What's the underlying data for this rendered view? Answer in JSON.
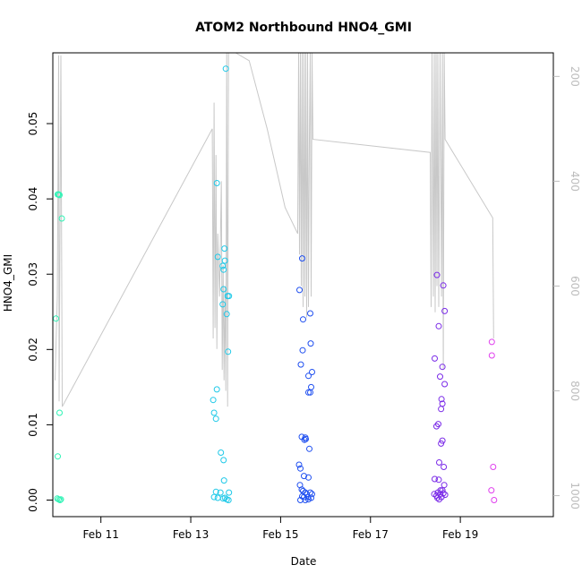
{
  "chart_data": {
    "type": "scatter",
    "title": "ATOM2 Northbound HNO4_GMI",
    "xlabel": "Date",
    "ylabel": "HNO4_GMI",
    "x_ticks": [
      {
        "label": "Feb 11",
        "day": 11
      },
      {
        "label": "Feb 13",
        "day": 13
      },
      {
        "label": "Feb 15",
        "day": 15
      },
      {
        "label": "Feb 17",
        "day": 17
      },
      {
        "label": "Feb 19",
        "day": 19
      }
    ],
    "y_ticks": [
      "0.00",
      "0.01",
      "0.02",
      "0.03",
      "0.04",
      "0.05"
    ],
    "xlim": [
      9.93,
      21.07
    ],
    "ylim": [
      -0.0022,
      0.0594
    ],
    "right_axis": {
      "ticks": [
        "200",
        "400",
        "600",
        "800",
        "1000"
      ],
      "lim": [
        1040,
        155
      ],
      "reversed": true,
      "color": "#bdbdbd"
    },
    "points": [
      {
        "x": 10.0,
        "y": 0.0241,
        "color": "#2EF3B5"
      },
      {
        "x": 10.04,
        "y": 0.0406,
        "color": "#2EF3B5"
      },
      {
        "x": 10.06,
        "y": 0.0406,
        "color": "#2EF3B5"
      },
      {
        "x": 10.08,
        "y": 0.0405,
        "color": "#2EF3B5"
      },
      {
        "x": 10.13,
        "y": 0.0374,
        "color": "#2EF3B5"
      },
      {
        "x": 10.08,
        "y": 0.0116,
        "color": "#2EF3B5"
      },
      {
        "x": 10.04,
        "y": 0.0058,
        "color": "#2EF3B5"
      },
      {
        "x": 10.03,
        "y": 0.0002,
        "color": "#2EF3B5"
      },
      {
        "x": 10.06,
        "y": 0.0001,
        "color": "#2EF3B5"
      },
      {
        "x": 10.09,
        "y": 0.0,
        "color": "#2EF3B5"
      },
      {
        "x": 10.11,
        "y": 0.0001,
        "color": "#2EF3B5"
      },
      {
        "x": 13.78,
        "y": 0.0573,
        "color": "#1FC9E8"
      },
      {
        "x": 13.58,
        "y": 0.0421,
        "color": "#1FC9E8"
      },
      {
        "x": 13.75,
        "y": 0.0334,
        "color": "#1FC9E8"
      },
      {
        "x": 13.6,
        "y": 0.0323,
        "color": "#1FC9E8"
      },
      {
        "x": 13.76,
        "y": 0.0318,
        "color": "#1FC9E8"
      },
      {
        "x": 13.71,
        "y": 0.0311,
        "color": "#1FC9E8"
      },
      {
        "x": 13.73,
        "y": 0.0306,
        "color": "#1FC9E8"
      },
      {
        "x": 13.73,
        "y": 0.028,
        "color": "#1FC9E8"
      },
      {
        "x": 13.82,
        "y": 0.0271,
        "color": "#1FC9E8"
      },
      {
        "x": 13.85,
        "y": 0.0271,
        "color": "#1FC9E8"
      },
      {
        "x": 13.71,
        "y": 0.026,
        "color": "#1FC9E8"
      },
      {
        "x": 13.8,
        "y": 0.0247,
        "color": "#1FC9E8"
      },
      {
        "x": 13.83,
        "y": 0.0197,
        "color": "#1FC9E8"
      },
      {
        "x": 13.58,
        "y": 0.0147,
        "color": "#1FC9E8"
      },
      {
        "x": 13.5,
        "y": 0.0133,
        "color": "#1FC9E8"
      },
      {
        "x": 13.52,
        "y": 0.0116,
        "color": "#1FC9E8"
      },
      {
        "x": 13.56,
        "y": 0.0108,
        "color": "#1FC9E8"
      },
      {
        "x": 13.67,
        "y": 0.0063,
        "color": "#1FC9E8"
      },
      {
        "x": 13.73,
        "y": 0.0053,
        "color": "#1FC9E8"
      },
      {
        "x": 13.74,
        "y": 0.0026,
        "color": "#1FC9E8"
      },
      {
        "x": 13.56,
        "y": 0.0011,
        "color": "#1FC9E8"
      },
      {
        "x": 13.66,
        "y": 0.001,
        "color": "#1FC9E8"
      },
      {
        "x": 13.85,
        "y": 0.001,
        "color": "#1FC9E8"
      },
      {
        "x": 13.52,
        "y": 0.0004,
        "color": "#1FC9E8"
      },
      {
        "x": 13.6,
        "y": 0.0003,
        "color": "#1FC9E8"
      },
      {
        "x": 13.76,
        "y": 0.0003,
        "color": "#1FC9E8"
      },
      {
        "x": 13.8,
        "y": 0.0001,
        "color": "#1FC9E8"
      },
      {
        "x": 13.84,
        "y": 0.0,
        "color": "#1FC9E8"
      },
      {
        "x": 13.72,
        "y": 0.0002,
        "color": "#1FC9E8"
      },
      {
        "x": 15.48,
        "y": 0.0321,
        "color": "#1F4FF0"
      },
      {
        "x": 15.42,
        "y": 0.0279,
        "color": "#1F4FF0"
      },
      {
        "x": 15.66,
        "y": 0.0248,
        "color": "#1F4FF0"
      },
      {
        "x": 15.5,
        "y": 0.024,
        "color": "#1F4FF0"
      },
      {
        "x": 15.67,
        "y": 0.0208,
        "color": "#1F4FF0"
      },
      {
        "x": 15.49,
        "y": 0.0199,
        "color": "#1F4FF0"
      },
      {
        "x": 15.45,
        "y": 0.018,
        "color": "#1F4FF0"
      },
      {
        "x": 15.7,
        "y": 0.017,
        "color": "#1F4FF0"
      },
      {
        "x": 15.62,
        "y": 0.0165,
        "color": "#1F4FF0"
      },
      {
        "x": 15.68,
        "y": 0.015,
        "color": "#1F4FF0"
      },
      {
        "x": 15.62,
        "y": 0.0143,
        "color": "#1F4FF0"
      },
      {
        "x": 15.66,
        "y": 0.0143,
        "color": "#1F4FF0"
      },
      {
        "x": 15.47,
        "y": 0.0084,
        "color": "#1F4FF0"
      },
      {
        "x": 15.55,
        "y": 0.0083,
        "color": "#1F4FF0"
      },
      {
        "x": 15.56,
        "y": 0.0081,
        "color": "#1F4FF0"
      },
      {
        "x": 15.53,
        "y": 0.008,
        "color": "#1F4FF0"
      },
      {
        "x": 15.64,
        "y": 0.0068,
        "color": "#1F4FF0"
      },
      {
        "x": 15.41,
        "y": 0.0047,
        "color": "#1F4FF0"
      },
      {
        "x": 15.44,
        "y": 0.0042,
        "color": "#1F4FF0"
      },
      {
        "x": 15.52,
        "y": 0.0032,
        "color": "#1F4FF0"
      },
      {
        "x": 15.62,
        "y": 0.003,
        "color": "#1F4FF0"
      },
      {
        "x": 15.43,
        "y": 0.002,
        "color": "#1F4FF0"
      },
      {
        "x": 15.47,
        "y": 0.0014,
        "color": "#1F4FF0"
      },
      {
        "x": 15.5,
        "y": 0.0012,
        "color": "#1F4FF0"
      },
      {
        "x": 15.55,
        "y": 0.001,
        "color": "#1F4FF0"
      },
      {
        "x": 15.58,
        "y": 0.0008,
        "color": "#1F4FF0"
      },
      {
        "x": 15.66,
        "y": 0.001,
        "color": "#1F4FF0"
      },
      {
        "x": 15.7,
        "y": 0.0008,
        "color": "#1F4FF0"
      },
      {
        "x": 15.48,
        "y": 0.0005,
        "color": "#1F4FF0"
      },
      {
        "x": 15.52,
        "y": 0.0004,
        "color": "#1F4FF0"
      },
      {
        "x": 15.61,
        "y": 0.0004,
        "color": "#1F4FF0"
      },
      {
        "x": 15.44,
        "y": 0.0,
        "color": "#1F4FF0"
      },
      {
        "x": 15.55,
        "y": 0.0,
        "color": "#1F4FF0"
      },
      {
        "x": 15.62,
        "y": 0.0001,
        "color": "#1F4FF0"
      },
      {
        "x": 15.68,
        "y": 0.0003,
        "color": "#1F4FF0"
      },
      {
        "x": 18.48,
        "y": 0.0299,
        "color": "#7A2AE8"
      },
      {
        "x": 18.62,
        "y": 0.0285,
        "color": "#7A2AE8"
      },
      {
        "x": 18.65,
        "y": 0.0251,
        "color": "#7A2AE8"
      },
      {
        "x": 18.52,
        "y": 0.0231,
        "color": "#7A2AE8"
      },
      {
        "x": 18.43,
        "y": 0.0188,
        "color": "#7A2AE8"
      },
      {
        "x": 18.6,
        "y": 0.0177,
        "color": "#7A2AE8"
      },
      {
        "x": 18.55,
        "y": 0.0164,
        "color": "#7A2AE8"
      },
      {
        "x": 18.65,
        "y": 0.0154,
        "color": "#7A2AE8"
      },
      {
        "x": 18.58,
        "y": 0.0134,
        "color": "#7A2AE8"
      },
      {
        "x": 18.6,
        "y": 0.0128,
        "color": "#7A2AE8"
      },
      {
        "x": 18.57,
        "y": 0.0121,
        "color": "#7A2AE8"
      },
      {
        "x": 18.51,
        "y": 0.0101,
        "color": "#7A2AE8"
      },
      {
        "x": 18.47,
        "y": 0.0098,
        "color": "#7A2AE8"
      },
      {
        "x": 18.6,
        "y": 0.0079,
        "color": "#7A2AE8"
      },
      {
        "x": 18.57,
        "y": 0.0075,
        "color": "#7A2AE8"
      },
      {
        "x": 18.53,
        "y": 0.005,
        "color": "#7A2AE8"
      },
      {
        "x": 18.63,
        "y": 0.0044,
        "color": "#7A2AE8"
      },
      {
        "x": 18.43,
        "y": 0.0028,
        "color": "#7A2AE8"
      },
      {
        "x": 18.52,
        "y": 0.0027,
        "color": "#7A2AE8"
      },
      {
        "x": 18.64,
        "y": 0.002,
        "color": "#7A2AE8"
      },
      {
        "x": 18.56,
        "y": 0.0013,
        "color": "#7A2AE8"
      },
      {
        "x": 18.6,
        "y": 0.0013,
        "color": "#7A2AE8"
      },
      {
        "x": 18.42,
        "y": 0.0008,
        "color": "#7A2AE8"
      },
      {
        "x": 18.47,
        "y": 0.0006,
        "color": "#7A2AE8"
      },
      {
        "x": 18.5,
        "y": 0.001,
        "color": "#7A2AE8"
      },
      {
        "x": 18.55,
        "y": 0.0008,
        "color": "#7A2AE8"
      },
      {
        "x": 18.62,
        "y": 0.0009,
        "color": "#7A2AE8"
      },
      {
        "x": 18.66,
        "y": 0.0007,
        "color": "#7A2AE8"
      },
      {
        "x": 18.49,
        "y": 0.0003,
        "color": "#7A2AE8"
      },
      {
        "x": 18.53,
        "y": 0.0001,
        "color": "#7A2AE8"
      },
      {
        "x": 18.58,
        "y": 0.0004,
        "color": "#7A2AE8"
      },
      {
        "x": 19.7,
        "y": 0.021,
        "color": "#E040EE"
      },
      {
        "x": 19.7,
        "y": 0.0192,
        "color": "#E040EE"
      },
      {
        "x": 19.73,
        "y": 0.0044,
        "color": "#E040EE"
      },
      {
        "x": 19.69,
        "y": 0.0013,
        "color": "#E040EE"
      },
      {
        "x": 19.75,
        "y": 0.0,
        "color": "#E040EE"
      }
    ],
    "pressure_line": {
      "color": "#c8c8c8",
      "x": [
        9.98,
        10.03,
        10.06,
        10.07,
        10.09,
        10.11,
        10.14,
        13.48,
        13.5,
        13.52,
        13.54,
        13.56,
        13.58,
        13.6,
        13.64,
        13.68,
        13.7,
        13.72,
        13.74,
        13.76,
        13.78,
        13.8,
        13.82,
        13.84,
        14.0,
        14.3,
        14.7,
        15.1,
        15.38,
        15.4,
        15.42,
        15.44,
        15.46,
        15.48,
        15.5,
        15.52,
        15.54,
        15.56,
        15.58,
        15.6,
        15.62,
        15.64,
        15.66,
        15.68,
        15.7,
        15.72,
        18.33,
        18.35,
        18.37,
        18.4,
        18.42,
        18.44,
        18.46,
        18.48,
        18.5,
        18.52,
        18.55,
        18.58,
        18.6,
        18.62,
        18.64,
        18.66,
        19.72,
        19.74
      ],
      "p": [
        780,
        620,
        160,
        820,
        500,
        160,
        830,
        300,
        700,
        250,
        680,
        350,
        720,
        500,
        620,
        400,
        760,
        560,
        780,
        600,
        800,
        155,
        830,
        155,
        155,
        170,
        300,
        450,
        500,
        155,
        540,
        155,
        600,
        155,
        640,
        155,
        620,
        155,
        660,
        155,
        640,
        320,
        155,
        620,
        155,
        320,
        345,
        640,
        155,
        620,
        155,
        650,
        155,
        600,
        155,
        640,
        155,
        620,
        155,
        760,
        155,
        320,
        470,
        700
      ]
    }
  }
}
